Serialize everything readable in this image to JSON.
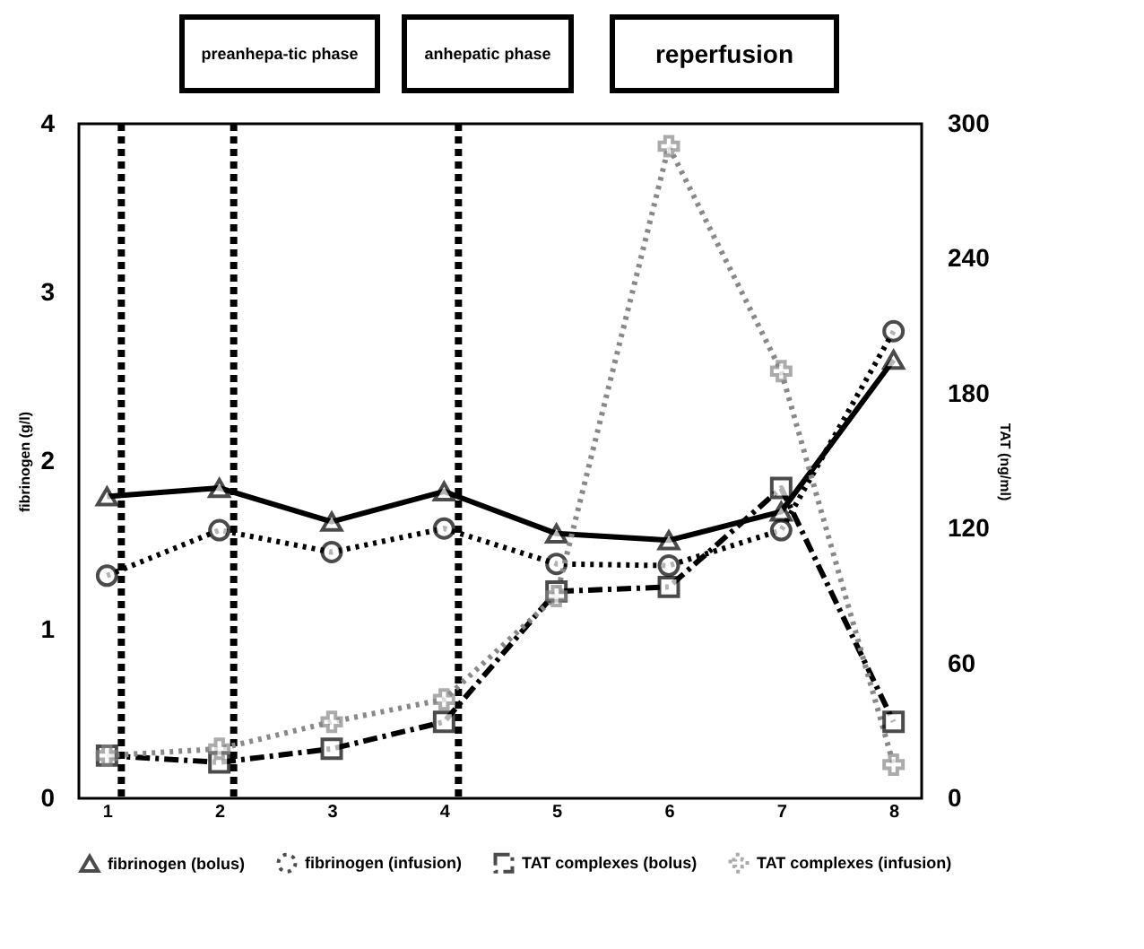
{
  "chart_data": {
    "type": "line",
    "xlabel": null,
    "ylabel": "fibrinogen (g/l)",
    "y2label": "TAT (ng/ml)",
    "annotations": [
      "preanhepa-tic phase",
      "anhepatic phase",
      "reperfusion"
    ],
    "categories": [
      "1",
      "2",
      "3",
      "4",
      "5",
      "6",
      "7",
      "8"
    ],
    "ylim": [
      0,
      4
    ],
    "yticks": [
      0,
      1,
      2,
      3,
      4
    ],
    "y2lim": [
      0,
      300
    ],
    "y2ticks": [
      0,
      60,
      120,
      180,
      240,
      300
    ],
    "grid": false,
    "legend": "bottom",
    "ref_lines": [
      {
        "axis": "x",
        "value": "1",
        "label": null,
        "line_style": "dashed"
      },
      {
        "axis": "x",
        "value": "2",
        "label": null,
        "line_style": "dashed"
      },
      {
        "axis": "x",
        "value": "4",
        "label": null,
        "line_style": "dashed"
      }
    ],
    "series": [
      {
        "name": "fibrinogen (bolus)",
        "color": "#000000",
        "marker": "triangle",
        "line_style": "solid",
        "values": [
          1.79,
          1.84,
          1.64,
          1.82,
          1.57,
          1.53,
          1.7,
          2.6
        ]
      },
      {
        "name": "fibrinogen (infusion)",
        "color": "#000000",
        "marker": "circle",
        "line_style": "dotted",
        "values": [
          1.32,
          1.59,
          1.46,
          1.6,
          1.39,
          1.38,
          1.59,
          2.77
        ]
      },
      {
        "name": "TAT complexes (bolus)",
        "color": "#000000",
        "marker": "square",
        "line_style": "dashed",
        "axis": "y2",
        "values": [
          19,
          16,
          22,
          34,
          92,
          94,
          138,
          34
        ]
      },
      {
        "name": "TAT complexes (infusion)",
        "color": "#888888",
        "marker": "cross",
        "line_style": "dotted",
        "axis": "y2",
        "values": [
          19,
          22,
          34,
          44,
          90,
          290,
          190,
          15
        ]
      }
    ]
  }
}
